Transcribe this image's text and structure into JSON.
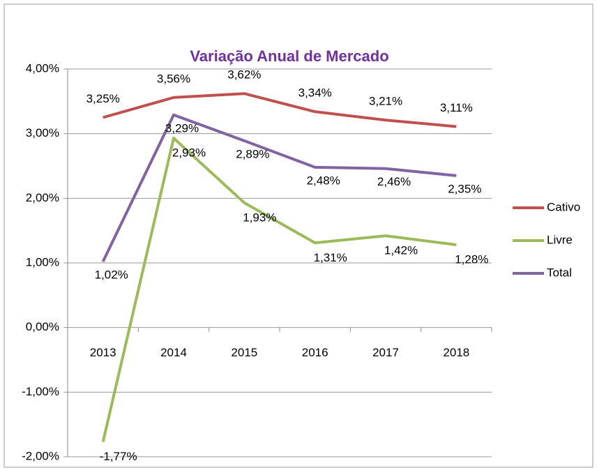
{
  "chart_data": {
    "type": "line",
    "title": "Variação Anual de Mercado",
    "categories": [
      "2013",
      "2014",
      "2015",
      "2016",
      "2017",
      "2018"
    ],
    "series": [
      {
        "name": "Cativo",
        "color": "#c0504d",
        "values": [
          3.25,
          3.56,
          3.62,
          3.34,
          3.21,
          3.11
        ],
        "value_labels": [
          "3,25%",
          "3,56%",
          "3,62%",
          "3,34%",
          "3,21%",
          "3,11%"
        ]
      },
      {
        "name": "Livre",
        "color": "#9bbb59",
        "values": [
          -1.77,
          2.93,
          1.93,
          1.31,
          1.42,
          1.28
        ],
        "value_labels": [
          "-1,77%",
          "2,93%",
          "1,93%",
          "1,31%",
          "1,42%",
          "1,28%"
        ]
      },
      {
        "name": "Total",
        "color": "#8064a2",
        "values": [
          1.02,
          3.29,
          2.89,
          2.48,
          2.46,
          2.35
        ],
        "value_labels": [
          "1,02%",
          "3,29%",
          "2,89%",
          "2,48%",
          "2,46%",
          "2,35%"
        ]
      }
    ],
    "ylim": [
      -2,
      4
    ],
    "yticks": [
      {
        "value": -2,
        "label": "-2,00%"
      },
      {
        "value": -1,
        "label": "-1,00%"
      },
      {
        "value": 0,
        "label": "0,00%"
      },
      {
        "value": 1,
        "label": "1,00%"
      },
      {
        "value": 2,
        "label": "2,00%"
      },
      {
        "value": 3,
        "label": "3,00%"
      },
      {
        "value": 4,
        "label": "4,00%"
      }
    ],
    "grid": true,
    "legend": "right"
  }
}
